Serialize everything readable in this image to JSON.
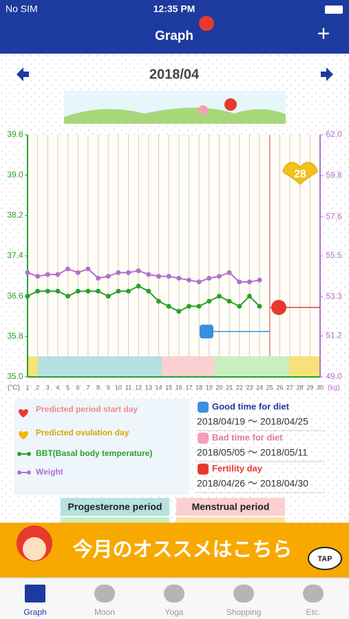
{
  "status_bar": {
    "carrier": "No SIM",
    "time": "12:35 PM"
  },
  "nav": {
    "title": "Graph",
    "add": "+"
  },
  "month": "2018/04",
  "chart_data": {
    "type": "line",
    "x": [
      1,
      2,
      3,
      4,
      5,
      6,
      7,
      8,
      9,
      10,
      11,
      12,
      13,
      14,
      15,
      16,
      17,
      18,
      19,
      20,
      21,
      22,
      23,
      24,
      25,
      26,
      27,
      28,
      29,
      30
    ],
    "xlim": [
      1,
      30
    ],
    "xticks": [
      1,
      2,
      3,
      4,
      5,
      6,
      7,
      8,
      9,
      10,
      11,
      12,
      13,
      14,
      15,
      16,
      17,
      18,
      19,
      20,
      21,
      22,
      23,
      24,
      25,
      26,
      27,
      28,
      29,
      30
    ],
    "ylim": [
      35.0,
      39.8
    ],
    "yticks": [
      {
        "value": 35,
        "label": "35.0"
      },
      35.8,
      36.6,
      37.4,
      38.2,
      {
        "value": 39,
        "label": "39.0"
      },
      39.8
    ],
    "y2lim": [
      49.0,
      62.0
    ],
    "y2ticks": [
      {
        "value": 49,
        "label": "49.0"
      },
      51.2,
      53.3,
      55.5,
      57.6,
      59.8,
      {
        "value": 62,
        "label": "62.0"
      }
    ],
    "ylabel": "(°C)",
    "y2label": "(kg)",
    "cycle_day": "28",
    "series": [
      {
        "name": "BBT(Basal body temperature)",
        "color": "#2aa02a",
        "values": [
          36.6,
          36.7,
          36.7,
          36.7,
          36.6,
          36.7,
          36.7,
          36.7,
          36.6,
          36.7,
          36.7,
          36.8,
          36.7,
          36.5,
          36.4,
          36.3,
          36.4,
          36.4,
          36.5,
          36.6,
          36.5,
          36.4,
          36.6,
          36.4,
          null,
          null,
          null,
          null,
          null,
          null
        ]
      },
      {
        "name": "Weight",
        "color": "#b36fcf",
        "axis": "y2",
        "values": [
          54.6,
          54.4,
          54.5,
          54.5,
          54.8,
          54.6,
          54.8,
          54.3,
          54.4,
          54.6,
          54.6,
          54.7,
          54.5,
          54.4,
          54.4,
          54.3,
          54.2,
          54.1,
          54.3,
          54.4,
          54.6,
          54.1,
          54.1,
          54.2,
          null,
          null,
          null,
          null,
          null,
          null
        ]
      }
    ]
  },
  "legend": {
    "period": "Predicted period start day",
    "ovulation": "Predicted ovulation day"
  },
  "diet": [
    {
      "label": "Good time for diet",
      "range": "2018/04/19 ～ 2018/04/25"
    },
    {
      "label": "Bad time for diet",
      "range": "2018/05/05 ～ 2018/05/11"
    },
    {
      "label": "Fertility day",
      "range": "2018/04/26 ～ 2018/04/30"
    }
  ],
  "periods": [
    "Progesterone period",
    "Menstrual period"
  ],
  "banner": {
    "text": "今月のオススメはこちら",
    "tap": "TAP"
  },
  "tabs": [
    "Graph",
    "Moon",
    "Yoga",
    "Shopping",
    "Etc."
  ]
}
